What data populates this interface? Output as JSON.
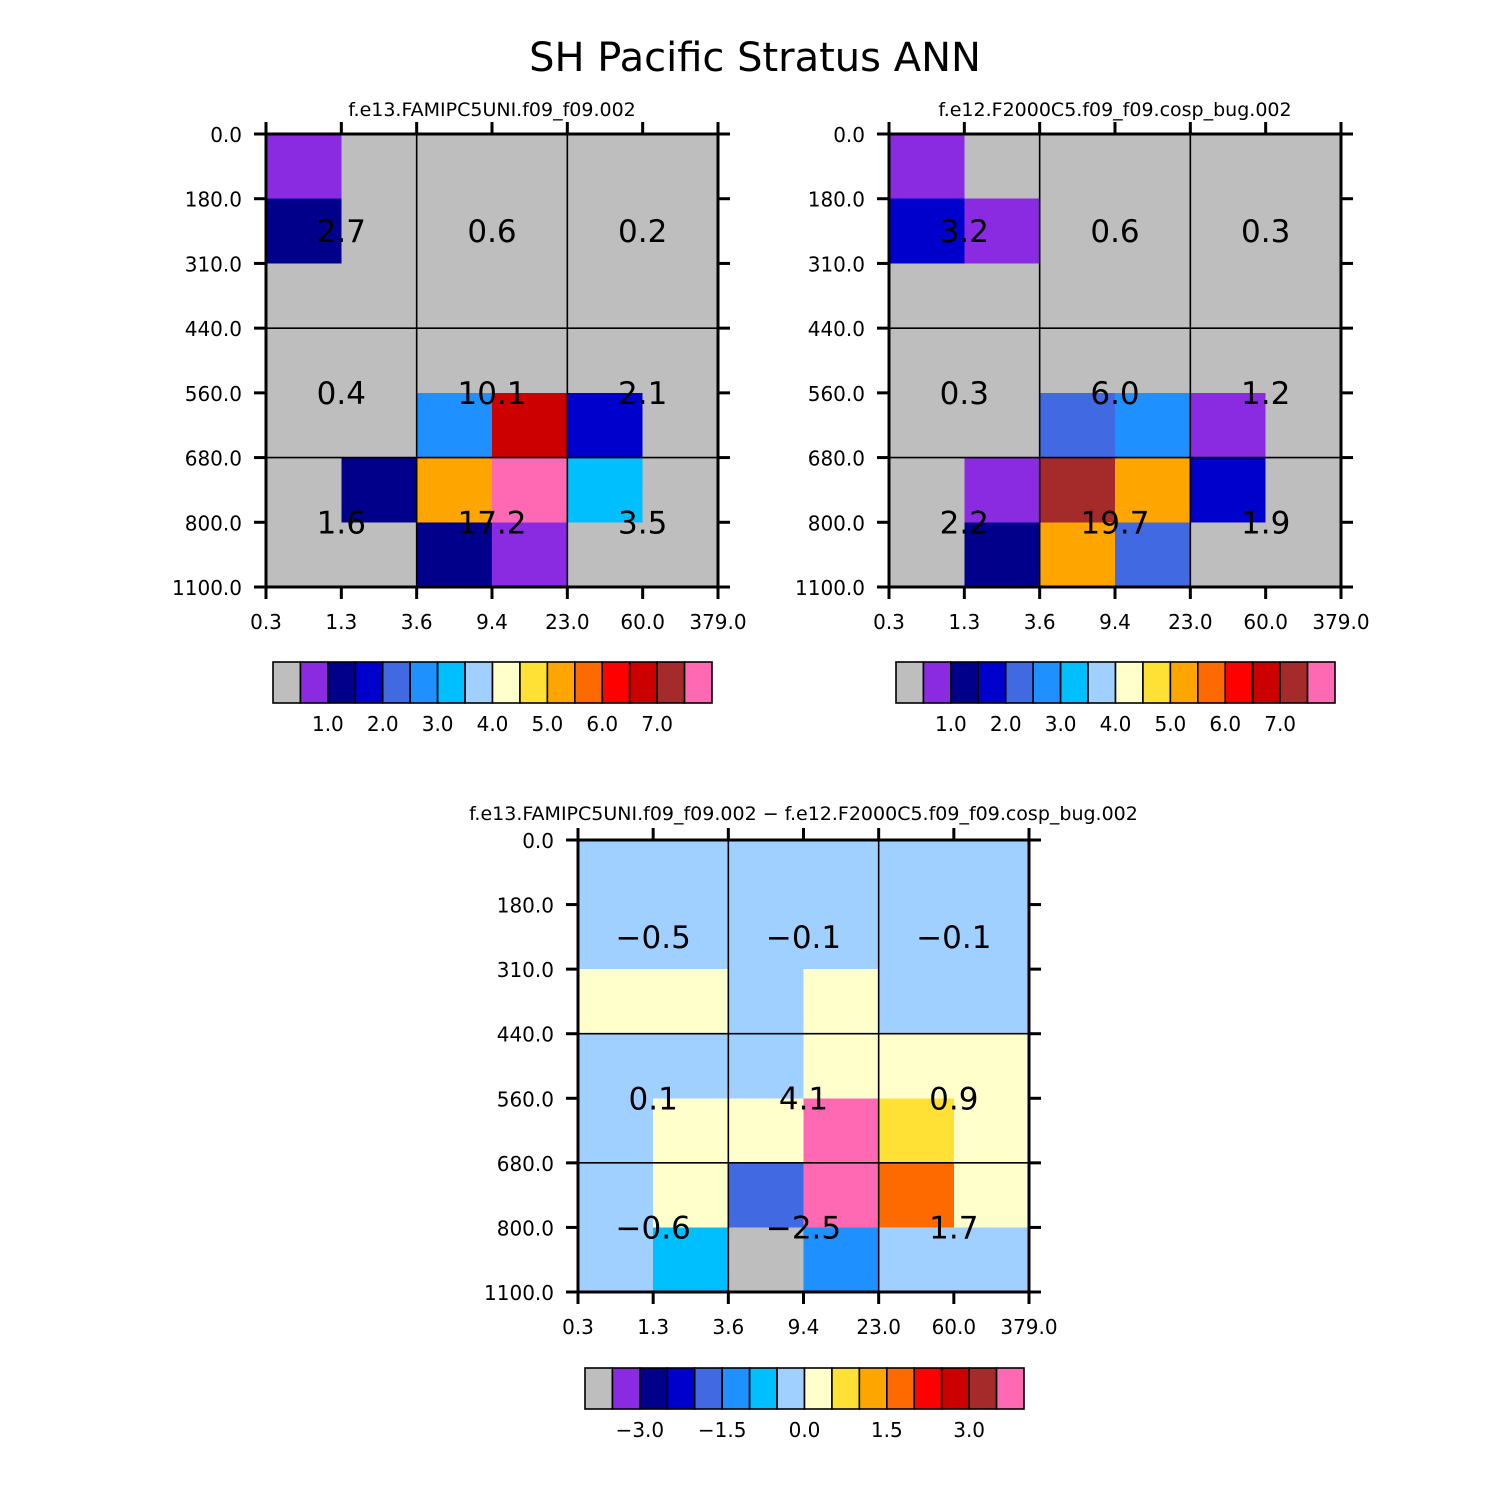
{
  "title": "SH Pacific Stratus ANN",
  "palette": {
    "colors": [
      "#BEBEBE",
      "#8A2BE2",
      "#00008B",
      "#0000CD",
      "#4169E1",
      "#1E90FF",
      "#00BFFF",
      "#A0D0FF",
      "#FFFFCC",
      "#FFE135",
      "#FFA500",
      "#FF6A00",
      "#FF0000",
      "#CD0000",
      "#A52A2A",
      "#FF69B4"
    ]
  },
  "chart_data": [
    {
      "type": "heatmap",
      "title": "f.e13.FAMIPC5UNI.f09_f09.002",
      "x_tick_labels": [
        "0.3",
        "1.3",
        "3.6",
        "9.4",
        "23.0",
        "60.0",
        "379.0"
      ],
      "y_tick_labels": [
        "0.0",
        "180.0",
        "310.0",
        "440.0",
        "560.0",
        "680.0",
        "800.0",
        "1100.0"
      ],
      "cell_color_index": [
        [
          1,
          0,
          0,
          0,
          0,
          0
        ],
        [
          2,
          0,
          0,
          0,
          0,
          0
        ],
        [
          0,
          0,
          0,
          0,
          0,
          0
        ],
        [
          0,
          0,
          0,
          0,
          0,
          0
        ],
        [
          0,
          0,
          5,
          13,
          3,
          0
        ],
        [
          0,
          2,
          10,
          15,
          6,
          0
        ],
        [
          0,
          0,
          2,
          1,
          0,
          0
        ]
      ],
      "region_values": [
        [
          "2.7",
          "0.6",
          "0.2"
        ],
        [
          "0.4",
          "10.1",
          "2.1"
        ],
        [
          "1.6",
          "17.2",
          "3.5"
        ]
      ],
      "colorbar_labels": [
        "1.0",
        "2.0",
        "3.0",
        "4.0",
        "5.0",
        "6.0",
        "7.0"
      ]
    },
    {
      "type": "heatmap",
      "title": "f.e12.F2000C5.f09_f09.cosp_bug.002",
      "x_tick_labels": [
        "0.3",
        "1.3",
        "3.6",
        "9.4",
        "23.0",
        "60.0",
        "379.0"
      ],
      "y_tick_labels": [
        "0.0",
        "180.0",
        "310.0",
        "440.0",
        "560.0",
        "680.0",
        "800.0",
        "1100.0"
      ],
      "cell_color_index": [
        [
          1,
          0,
          0,
          0,
          0,
          0
        ],
        [
          3,
          1,
          0,
          0,
          0,
          0
        ],
        [
          0,
          0,
          0,
          0,
          0,
          0
        ],
        [
          0,
          0,
          0,
          0,
          0,
          0
        ],
        [
          0,
          0,
          4,
          5,
          1,
          0
        ],
        [
          0,
          1,
          14,
          10,
          3,
          0
        ],
        [
          0,
          2,
          10,
          4,
          0,
          0
        ]
      ],
      "region_values": [
        [
          "3.2",
          "0.6",
          "0.3"
        ],
        [
          "0.3",
          "6.0",
          "1.2"
        ],
        [
          "2.2",
          "19.7",
          "1.9"
        ]
      ],
      "colorbar_labels": [
        "1.0",
        "2.0",
        "3.0",
        "4.0",
        "5.0",
        "6.0",
        "7.0"
      ]
    },
    {
      "type": "heatmap",
      "title": "f.e13.FAMIPC5UNI.f09_f09.002 - f.e12.F2000C5.f09_f09.cosp_bug.002",
      "x_tick_labels": [
        "0.3",
        "1.3",
        "3.6",
        "9.4",
        "23.0",
        "60.0",
        "379.0"
      ],
      "y_tick_labels": [
        "0.0",
        "180.0",
        "310.0",
        "440.0",
        "560.0",
        "680.0",
        "800.0",
        "1100.0"
      ],
      "cell_color_index": [
        [
          7,
          7,
          7,
          7,
          7,
          7
        ],
        [
          7,
          7,
          7,
          7,
          7,
          7
        ],
        [
          8,
          8,
          7,
          8,
          7,
          7
        ],
        [
          7,
          7,
          7,
          8,
          8,
          8
        ],
        [
          7,
          8,
          8,
          15,
          9,
          8
        ],
        [
          7,
          8,
          4,
          15,
          11,
          8
        ],
        [
          7,
          6,
          0,
          5,
          7,
          7
        ]
      ],
      "region_values": [
        [
          "-0.5",
          "-0.1",
          "-0.1"
        ],
        [
          "0.1",
          "4.1",
          "0.9"
        ],
        [
          "-0.6",
          "-2.5",
          "1.7"
        ]
      ],
      "colorbar_labels": [
        "-3.0",
        "-1.5",
        "0.0",
        "1.5",
        "3.0"
      ]
    }
  ]
}
